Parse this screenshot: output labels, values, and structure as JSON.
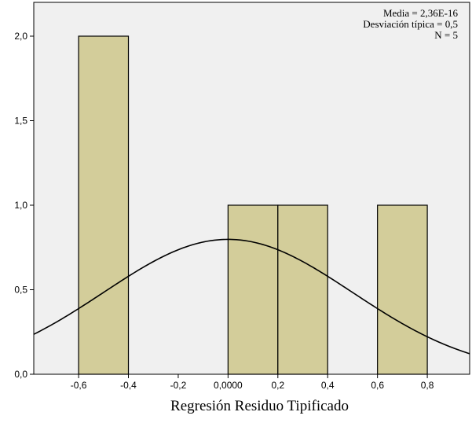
{
  "chart_data": {
    "type": "bar",
    "subtype": "histogram-with-normal-curve",
    "xlabel": "Regresión Residuo Tipificado",
    "ylabel": "",
    "xlim": [
      -0.78,
      0.97
    ],
    "ylim": [
      0,
      2.2
    ],
    "x_ticks": [
      -0.6,
      -0.4,
      -0.2,
      0.0,
      0.2,
      0.4,
      0.6,
      0.8
    ],
    "x_tick_labels": [
      "-0,6",
      "-0,4",
      "-0,2",
      "0,0000",
      "0,2",
      "0,4",
      "0,6",
      "0,8"
    ],
    "y_ticks": [
      0,
      0.5,
      1.0,
      1.5,
      2.0
    ],
    "y_tick_labels": [
      "0,0",
      "0,5",
      "1,0",
      "1,5",
      "2,0"
    ],
    "bins": [
      {
        "x0": -0.6,
        "x1": -0.4,
        "count": 2
      },
      {
        "x0": 0.0,
        "x1": 0.2,
        "count": 1
      },
      {
        "x0": 0.2,
        "x1": 0.4,
        "count": 1
      },
      {
        "x0": 0.6,
        "x1": 0.8,
        "count": 1
      }
    ],
    "normal_curve": {
      "mean": 0.0,
      "sd": 0.5,
      "n": 5,
      "bin_width": 0.2
    },
    "stats_lines": [
      "Media = 2,36E-16",
      "Desviación típica = 0,5",
      "N = 5"
    ],
    "grid": false,
    "legend": "none"
  },
  "colors": {
    "plot_background": "#f0f0f0",
    "bar_fill": "#d3cd9a",
    "bar_stroke": "#000000",
    "curve": "#000000"
  }
}
